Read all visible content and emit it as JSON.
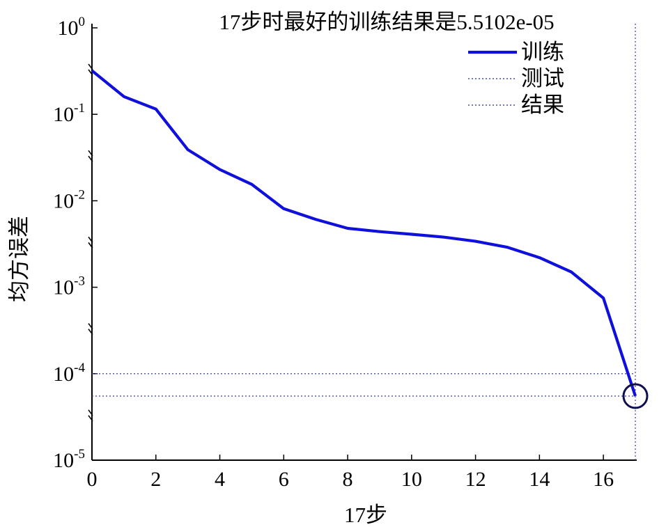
{
  "chart_data": {
    "type": "line",
    "title": "17步时最好的训练结果是5.5102e-05",
    "xlabel": "17步",
    "ylabel": "均方误差",
    "xlim": [
      0,
      17
    ],
    "ylim": [
      1e-05,
      1
    ],
    "y_scale": "log",
    "x_ticks": [
      "0",
      "2",
      "4",
      "6",
      "8",
      "10",
      "12",
      "14",
      "16"
    ],
    "y_ticks": [
      {
        "base": "10",
        "exp": "0",
        "value": 1
      },
      {
        "base": "10",
        "exp": "-1",
        "value": 0.1
      },
      {
        "base": "10",
        "exp": "-2",
        "value": 0.01
      },
      {
        "base": "10",
        "exp": "-3",
        "value": 0.001
      },
      {
        "base": "10",
        "exp": "-4",
        "value": 0.0001
      },
      {
        "base": "10",
        "exp": "-5",
        "value": 1e-05
      }
    ],
    "grid": false,
    "legend_position": "top-right",
    "series": [
      {
        "name": "训练",
        "style": "solid",
        "color": "#1010dd",
        "x": [
          0,
          1,
          2,
          3,
          4,
          5,
          6,
          7,
          8,
          9,
          10,
          11,
          12,
          13,
          14,
          15,
          16,
          17
        ],
        "y": [
          0.32,
          0.16,
          0.115,
          0.039,
          0.023,
          0.0155,
          0.0081,
          0.0061,
          0.0048,
          0.0044,
          0.0041,
          0.0038,
          0.0034,
          0.0029,
          0.0022,
          0.0015,
          0.00075,
          5.5102e-05
        ]
      },
      {
        "name": "测试",
        "style": "dotted",
        "color": "#4a4a9a",
        "constant_y": 0.0001
      },
      {
        "name": "结果",
        "style": "dotted",
        "color": "#4a4a9a",
        "constant_y": 5.5102e-05
      }
    ],
    "best_epoch": 17,
    "best_value": 5.5102e-05,
    "best_marker_color": "#101050"
  }
}
